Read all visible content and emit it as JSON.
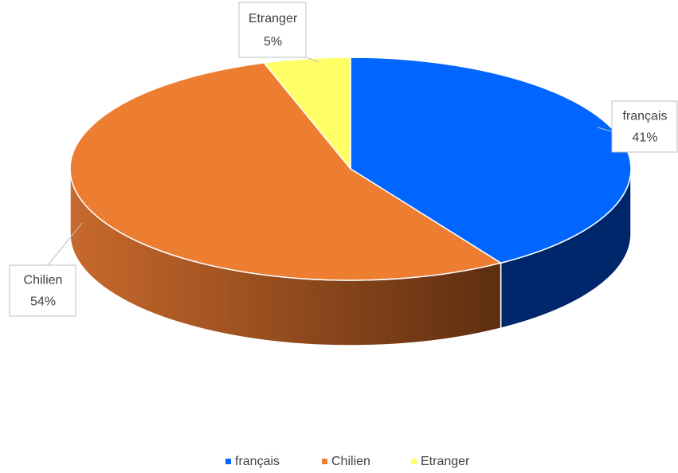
{
  "chart_data": {
    "type": "pie",
    "categories": [
      "français",
      "Chilien",
      "Etranger"
    ],
    "values": [
      41,
      54,
      5
    ],
    "value_labels": [
      "41%",
      "54%",
      "5%"
    ],
    "colors": [
      "#0066ff",
      "#ed7d31",
      "#ffff66"
    ],
    "legend": "bottom"
  }
}
